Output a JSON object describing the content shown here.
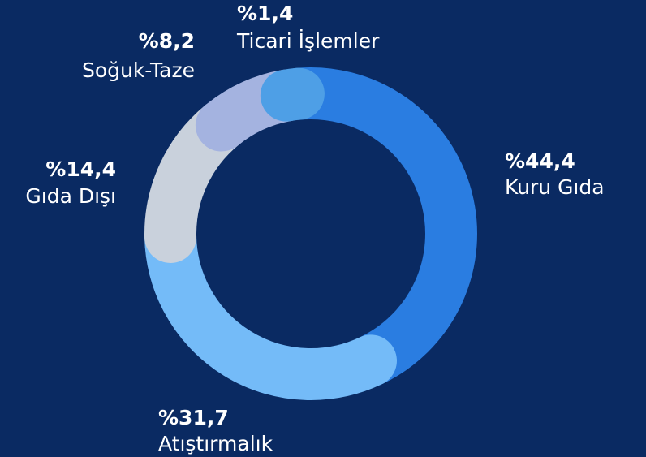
{
  "chart_data": {
    "type": "donut",
    "categories": [
      "Kuru Gıda",
      "Atıştırmalık",
      "Gıda Dışı",
      "Soğuk-Taze",
      "Ticari İşlemler"
    ],
    "values": [
      44.4,
      31.7,
      14.4,
      8.2,
      1.4
    ],
    "value_labels": [
      "%44,4",
      "%31,7",
      "%14,4",
      "%8,2",
      "%1,4"
    ],
    "colors": [
      "#2a7de1",
      "#74bbf8",
      "#c9d1dc",
      "#a4b3e0",
      "#4e9fe6"
    ]
  }
}
